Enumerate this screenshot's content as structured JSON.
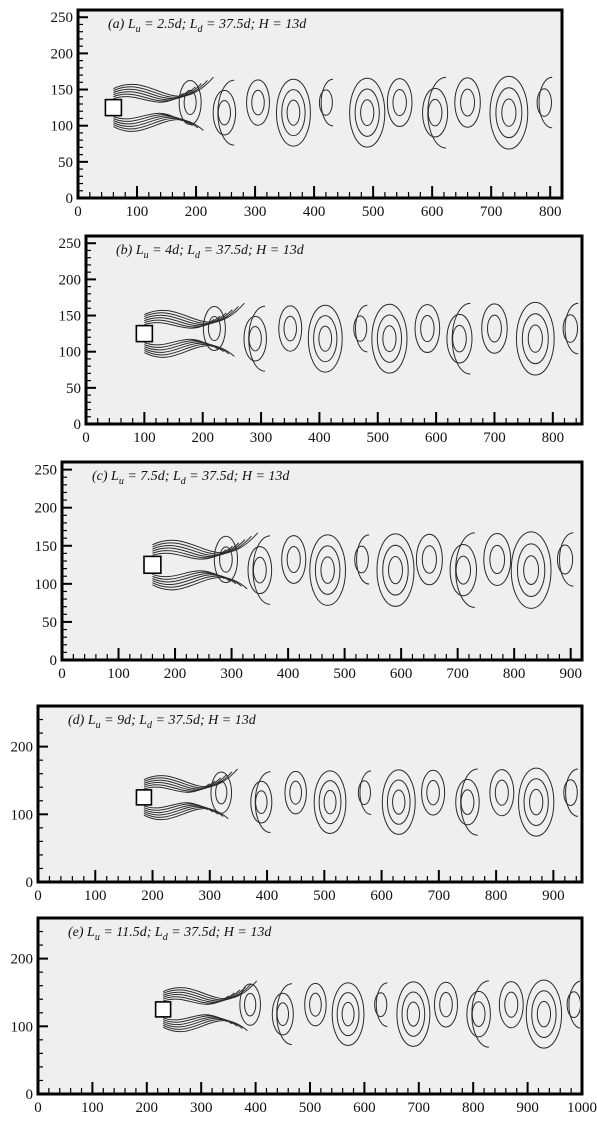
{
  "figure": {
    "panels": [
      {
        "id": "a",
        "title": "(a) L",
        "title_sub1": "u",
        "title_mid": " = 2.5d; L",
        "title_sub2": "d",
        "title_end": " = 37.5d; H = 13d",
        "x_ticks": [
          "0",
          "100",
          "200",
          "300",
          "400",
          "500",
          "600",
          "700",
          "800"
        ],
        "y_ticks": [
          "0",
          "50",
          "100",
          "150",
          "200",
          "250"
        ],
        "x_range": [
          0,
          820
        ],
        "y_range": [
          0,
          260
        ],
        "cylinder_x": 60,
        "vortex_x": [
          190,
          248,
          305,
          365,
          420,
          490,
          545,
          605,
          660,
          730,
          790
        ]
      },
      {
        "id": "b",
        "title": "(b) L",
        "title_sub1": "u",
        "title_mid": " = 4d; L",
        "title_sub2": "d",
        "title_end": " = 37.5d; H = 13d",
        "x_ticks": [
          "0",
          "100",
          "200",
          "300",
          "400",
          "500",
          "600",
          "700",
          "800"
        ],
        "y_ticks": [
          "0",
          "50",
          "100",
          "150",
          "200",
          "250"
        ],
        "x_range": [
          0,
          850
        ],
        "y_range": [
          0,
          260
        ],
        "cylinder_x": 100,
        "vortex_x": [
          220,
          290,
          350,
          410,
          470,
          520,
          585,
          640,
          700,
          770,
          830
        ]
      },
      {
        "id": "c",
        "title": "(c) L",
        "title_sub1": "u",
        "title_mid": " = 7.5d; L",
        "title_sub2": "d",
        "title_end": " = 37.5d; H = 13d",
        "x_ticks": [
          "0",
          "100",
          "200",
          "300",
          "400",
          "500",
          "600",
          "700",
          "800",
          "900"
        ],
        "y_ticks": [
          "0",
          "50",
          "100",
          "150",
          "200",
          "250"
        ],
        "x_range": [
          0,
          920
        ],
        "y_range": [
          0,
          260
        ],
        "cylinder_x": 160,
        "vortex_x": [
          290,
          350,
          410,
          470,
          530,
          590,
          650,
          710,
          770,
          830,
          890
        ]
      },
      {
        "id": "d",
        "title": "(d) L",
        "title_sub1": "u",
        "title_mid": " = 9d; L",
        "title_sub2": "d",
        "title_end": " = 37.5d; H = 13d",
        "x_ticks": [
          "0",
          "100",
          "200",
          "300",
          "400",
          "500",
          "600",
          "700",
          "800",
          "900"
        ],
        "y_ticks": [
          "0",
          "100",
          "200"
        ],
        "x_range": [
          0,
          950
        ],
        "y_range": [
          0,
          260
        ],
        "cylinder_x": 185,
        "vortex_x": [
          320,
          390,
          450,
          510,
          570,
          630,
          690,
          750,
          810,
          870,
          930
        ]
      },
      {
        "id": "e",
        "title": "(e) L",
        "title_sub1": "u",
        "title_mid": " = 11.5d; L",
        "title_sub2": "d",
        "title_end": " = 37.5d; H = 13d",
        "x_ticks": [
          "0",
          "100",
          "200",
          "300",
          "400",
          "500",
          "600",
          "700",
          "800",
          "900",
          "1000"
        ],
        "y_ticks": [
          "0",
          "100",
          "200"
        ],
        "x_range": [
          0,
          1000
        ],
        "y_range": [
          0,
          260
        ],
        "cylinder_x": 230,
        "vortex_x": [
          390,
          450,
          510,
          570,
          630,
          690,
          750,
          810,
          870,
          930,
          985
        ]
      }
    ]
  }
}
